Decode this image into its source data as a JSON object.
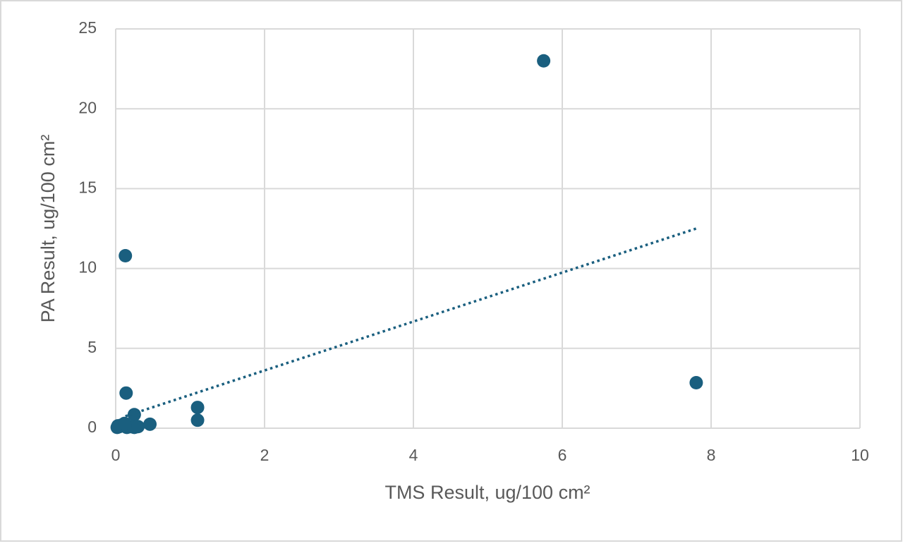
{
  "chart_data": {
    "type": "scatter",
    "x_label": "TMS Result, ug/100 cm²",
    "y_label": "PA Result, ug/100 cm²",
    "x": [
      5.75,
      7.8,
      0.13,
      0.14,
      1.1,
      1.1,
      0.25,
      0.46,
      0.02,
      0.05,
      0.08,
      0.1,
      0.15,
      0.2,
      0.25,
      0.3,
      0.03,
      0.12
    ],
    "values": [
      23.0,
      2.85,
      10.8,
      2.2,
      1.3,
      0.5,
      0.85,
      0.25,
      0.05,
      0.1,
      0.2,
      0.15,
      0.05,
      0.1,
      0.05,
      0.1,
      0.15,
      0.3
    ],
    "color": "#1a5f7f",
    "xlim": [
      0,
      10
    ],
    "ylim": [
      0,
      25
    ],
    "xticks": [
      0,
      2,
      4,
      6,
      8,
      10
    ],
    "yticks": [
      0,
      5,
      10,
      15,
      20,
      25
    ],
    "grid": true,
    "trendline": {
      "x": [
        0.13,
        7.8
      ],
      "values": [
        0.75,
        12.5
      ],
      "color": "#1a5f7f",
      "style": "dotted"
    }
  }
}
